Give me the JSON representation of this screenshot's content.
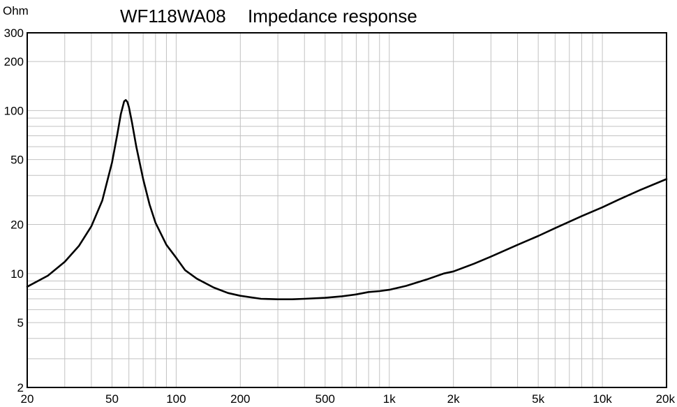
{
  "chart_data": {
    "type": "line",
    "title": "WF118WA08",
    "subtitle": "Impedance response",
    "ylabel": "Ohm",
    "xlabel": "",
    "x_scale": "log",
    "y_scale": "log",
    "xlim": [
      20,
      20000
    ],
    "ylim": [
      2,
      300
    ],
    "grid": true,
    "x_ticks": [
      {
        "value": 20,
        "label": "20"
      },
      {
        "value": 50,
        "label": "50"
      },
      {
        "value": 100,
        "label": "100"
      },
      {
        "value": 200,
        "label": "200"
      },
      {
        "value": 500,
        "label": "500"
      },
      {
        "value": 1000,
        "label": "1k"
      },
      {
        "value": 2000,
        "label": "2k"
      },
      {
        "value": 5000,
        "label": "5k"
      },
      {
        "value": 10000,
        "label": "10k"
      },
      {
        "value": 20000,
        "label": "20k"
      }
    ],
    "y_ticks": [
      {
        "value": 2,
        "label": "2"
      },
      {
        "value": 5,
        "label": "5"
      },
      {
        "value": 10,
        "label": "10"
      },
      {
        "value": 20,
        "label": "20"
      },
      {
        "value": 50,
        "label": "50"
      },
      {
        "value": 100,
        "label": "100"
      },
      {
        "value": 200,
        "label": "200"
      },
      {
        "value": 300,
        "label": "300"
      }
    ],
    "series": [
      {
        "x": [
          20,
          25,
          30,
          35,
          40,
          45,
          50,
          53,
          55,
          57,
          58,
          59,
          60,
          62,
          65,
          70,
          75,
          80,
          90,
          100,
          110,
          125,
          150,
          175,
          200,
          250,
          300,
          350,
          400,
          500,
          600,
          700,
          800,
          900,
          1000,
          1200,
          1500,
          1800,
          2000,
          2500,
          3000,
          4000,
          5000,
          6000,
          7000,
          8000,
          10000,
          12000,
          15000,
          20000
        ],
        "y": [
          8.3,
          9.7,
          11.8,
          14.8,
          19.5,
          28,
          48,
          72,
          95,
          114,
          116,
          113,
          105,
          85,
          60,
          38,
          26.5,
          20.5,
          15,
          12.5,
          10.5,
          9.3,
          8.2,
          7.6,
          7.3,
          7.0,
          6.95,
          6.95,
          7.0,
          7.1,
          7.25,
          7.45,
          7.7,
          7.8,
          7.95,
          8.4,
          9.2,
          10.0,
          10.3,
          11.5,
          12.7,
          15.0,
          17.0,
          19.0,
          20.8,
          22.5,
          25.5,
          28.5,
          32.5,
          38
        ]
      }
    ],
    "colors": {
      "line": "#000000",
      "grid": "#c2c2c2",
      "axes": "#000000"
    }
  }
}
